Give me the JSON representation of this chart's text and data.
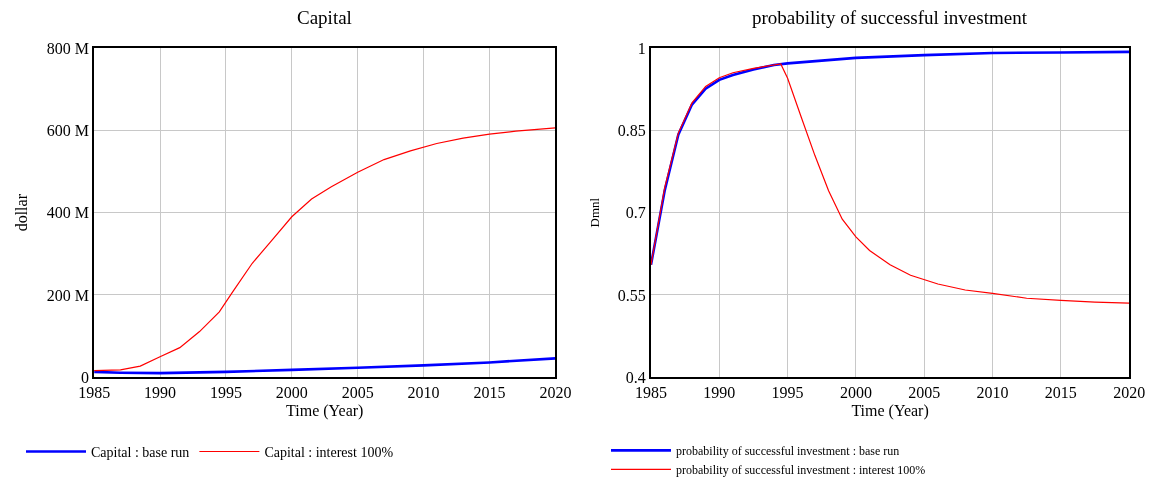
{
  "chart_data": [
    {
      "type": "line",
      "title": "Capital",
      "xlabel": "Time (Year)",
      "ylabel": "dollar",
      "xlim": [
        1985,
        2020
      ],
      "xticks": [
        1985,
        1990,
        1995,
        2000,
        2005,
        2010,
        2015,
        2020
      ],
      "ylim": [
        0,
        800000000
      ],
      "yticks": [
        {
          "value": 0,
          "label": "0"
        },
        {
          "value": 200000000,
          "label": "200 M"
        },
        {
          "value": 400000000,
          "label": "400 M"
        },
        {
          "value": 600000000,
          "label": "600 M"
        },
        {
          "value": 800000000,
          "label": "800 M"
        }
      ],
      "grid": true,
      "legend": "bottom",
      "series": [
        {
          "name": "Capital : base run",
          "color": "#0000ff",
          "x": [
            1985,
            1987,
            1990,
            1995,
            2000,
            2005,
            2010,
            2015,
            2020
          ],
          "values": [
            13000000,
            11000000,
            10000000,
            13000000,
            18000000,
            23000000,
            29000000,
            36000000,
            46000000
          ]
        },
        {
          "name": "Capital : interest 100%",
          "color": "#ff0000",
          "x": [
            1985,
            1987,
            1988.5,
            1990,
            1991.5,
            1993,
            1994.5,
            1995.5,
            1997,
            1998.5,
            2000,
            2001.5,
            2003,
            2005,
            2007,
            2009,
            2011,
            2013,
            2015,
            2017,
            2020
          ],
          "values": [
            16000000,
            18000000,
            27000000,
            50000000,
            72000000,
            111000000,
            159000000,
            207000000,
            277000000,
            333000000,
            390000000,
            433000000,
            463000000,
            498000000,
            529000000,
            550000000,
            568000000,
            581000000,
            591000000,
            598000000,
            606000000
          ]
        }
      ]
    },
    {
      "type": "line",
      "title": "probability of successful investment",
      "xlabel": "Time (Year)",
      "ylabel": "Dmnl",
      "xlim": [
        1985,
        2020
      ],
      "xticks": [
        1985,
        1990,
        1995,
        2000,
        2005,
        2010,
        2015,
        2020
      ],
      "ylim": [
        0.4,
        1.0
      ],
      "yticks": [
        0.4,
        0.55,
        0.7,
        0.85,
        {
          "value": 1.0,
          "label": "1"
        }
      ],
      "grid": true,
      "legend": "bottom",
      "series": [
        {
          "name": "probability of successful investment : base run",
          "color": "#0000ff",
          "x": [
            1985,
            1986,
            1987,
            1988,
            1989,
            1990,
            1991,
            1992.5,
            1994,
            1995,
            1997.5,
            2000,
            2005,
            2010,
            2015,
            2020
          ],
          "values": [
            0.605,
            0.74,
            0.842,
            0.897,
            0.926,
            0.942,
            0.951,
            0.961,
            0.969,
            0.972,
            0.977,
            0.982,
            0.987,
            0.991,
            0.992,
            0.993
          ]
        },
        {
          "name": "probability of successful investment : interest 100%",
          "color": "#ff0000",
          "x": [
            1985,
            1986,
            1987,
            1988,
            1989,
            1990,
            1991,
            1992.5,
            1994.5,
            1995,
            1996,
            1997,
            1998,
            1999,
            2000,
            2001,
            2002.5,
            2004,
            2006,
            2008,
            2010,
            2012.5,
            2015,
            2017.5,
            2020
          ],
          "values": [
            0.605,
            0.745,
            0.845,
            0.9,
            0.93,
            0.946,
            0.955,
            0.963,
            0.971,
            0.945,
            0.874,
            0.804,
            0.74,
            0.688,
            0.656,
            0.631,
            0.605,
            0.586,
            0.57,
            0.559,
            0.553,
            0.544,
            0.54,
            0.537,
            0.535
          ]
        }
      ]
    }
  ]
}
